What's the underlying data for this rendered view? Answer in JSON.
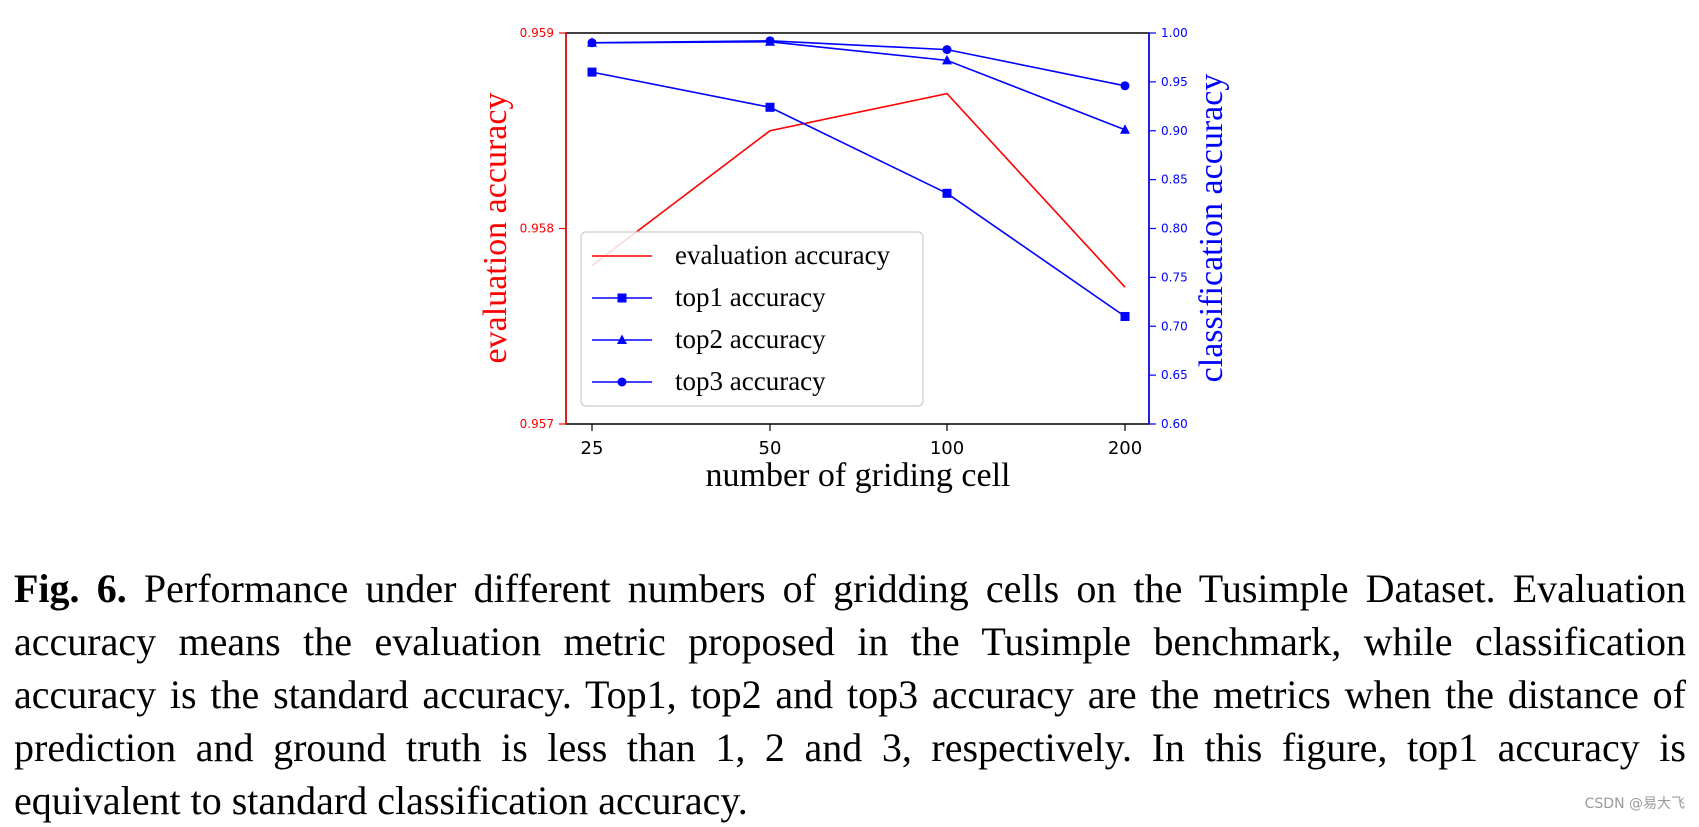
{
  "chart_data": {
    "type": "line",
    "x_categories": [
      "25",
      "50",
      "100",
      "200"
    ],
    "xlabel": "number of griding cell",
    "y_left": {
      "label": "evaluation accuracy",
      "range": [
        0.957,
        0.959
      ],
      "ticks": [
        "0.957",
        "0.958",
        "0.959"
      ],
      "color": "#ff0000"
    },
    "y_right": {
      "label": "classification accuracy",
      "range": [
        0.6,
        1.0
      ],
      "ticks": [
        "0.60",
        "0.65",
        "0.70",
        "0.75",
        "0.80",
        "0.85",
        "0.90",
        "0.95",
        "1.00"
      ],
      "color": "#0000ff"
    },
    "series": [
      {
        "name": "evaluation accuracy",
        "axis": "left",
        "color": "#ff0000",
        "marker": "none",
        "values": [
          0.95781,
          0.9585,
          0.95869,
          0.9577
        ]
      },
      {
        "name": "top1 accuracy",
        "axis": "right",
        "color": "#0000ff",
        "marker": "square",
        "values": [
          0.96,
          0.924,
          0.836,
          0.71
        ]
      },
      {
        "name": "top2 accuracy",
        "axis": "right",
        "color": "#0000ff",
        "marker": "triangle",
        "values": [
          0.99,
          0.991,
          0.972,
          0.901
        ]
      },
      {
        "name": "top3 accuracy",
        "axis": "right",
        "color": "#0000ff",
        "marker": "circle",
        "values": [
          0.99,
          0.992,
          0.983,
          0.946
        ]
      }
    ],
    "legend_position": "lower-left",
    "grid": false
  },
  "caption": {
    "fig_label": "Fig. 6.",
    "text": "Performance under different numbers of gridding cells on the Tusimple Dataset. Evaluation accuracy means the evaluation metric proposed in the Tusimple benchmark, while classification accuracy is the standard accuracy. Top1, top2 and top3 accuracy are the metrics when the distance of prediction and ground truth is less than 1, 2 and 3, respectively. In this figure, top1 accuracy is equivalent to standard classification accuracy."
  },
  "watermark": "CSDN @易大飞"
}
